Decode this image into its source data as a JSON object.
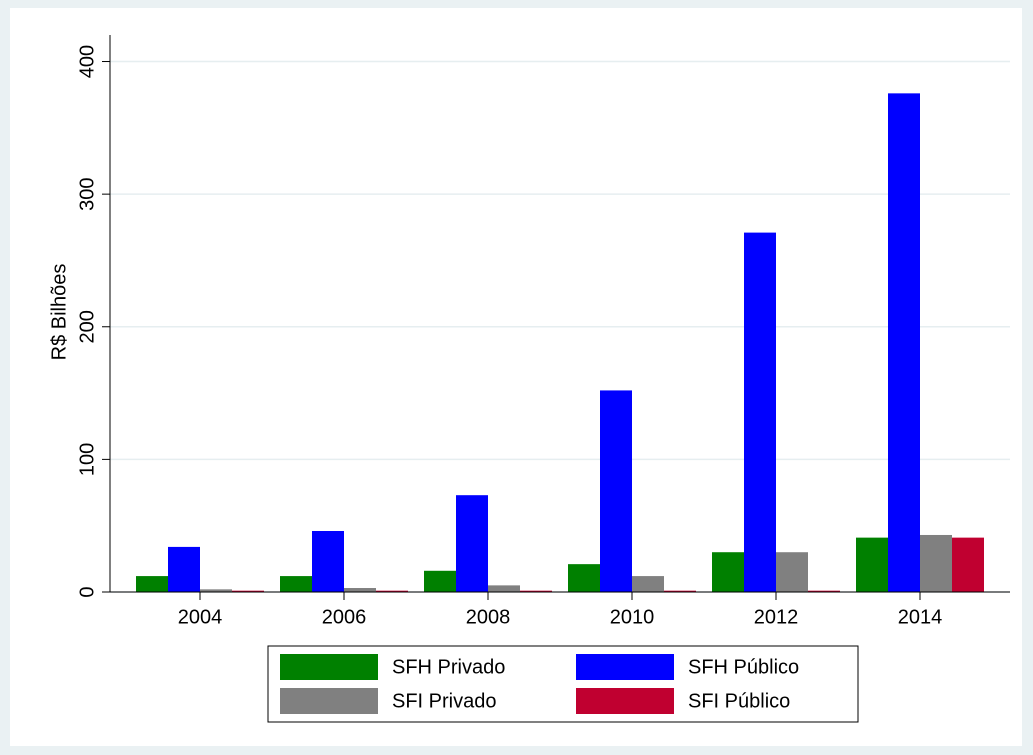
{
  "chart_data": {
    "type": "bar",
    "y_label": "R$ Bilhões",
    "categories": [
      "2004",
      "2006",
      "2008",
      "2010",
      "2012",
      "2014"
    ],
    "series": [
      {
        "name": "SFH Privado",
        "color": "#008000",
        "values": [
          12,
          12,
          16,
          21,
          30,
          41
        ]
      },
      {
        "name": "SFH Público",
        "color": "#0000ff",
        "values": [
          34,
          46,
          73,
          152,
          271,
          376
        ]
      },
      {
        "name": "SFI Privado",
        "color": "#808080",
        "values": [
          2,
          3,
          5,
          12,
          30,
          43
        ]
      },
      {
        "name": "SFI Público",
        "color": "#c00030",
        "values": [
          1,
          1,
          1,
          1,
          1,
          41
        ]
      }
    ],
    "ylim": [
      0,
      420
    ],
    "yticks": [
      0,
      100,
      200,
      300,
      400
    ],
    "grid": true,
    "legend": "bottom"
  }
}
